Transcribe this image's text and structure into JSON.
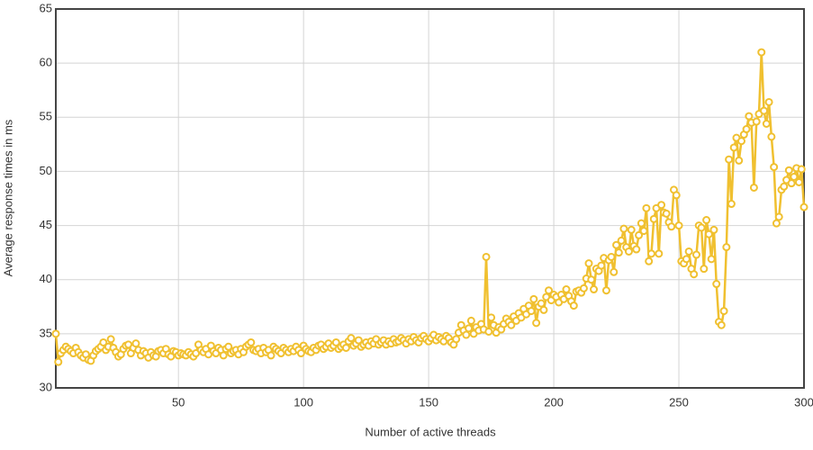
{
  "chart_data": {
    "type": "line",
    "x_label": "Number of active threads",
    "y_label": "Average response times in ms",
    "xlim": [
      1,
      300
    ],
    "xticks": [
      50,
      100,
      150,
      200,
      250,
      300
    ],
    "ylim": [
      30,
      65
    ],
    "yticks": [
      30,
      35,
      40,
      45,
      50,
      55,
      60,
      65
    ],
    "grid": true,
    "x": [
      1,
      2,
      3,
      4,
      5,
      6,
      7,
      8,
      9,
      10,
      11,
      12,
      13,
      14,
      15,
      16,
      17,
      18,
      19,
      20,
      21,
      22,
      23,
      24,
      25,
      26,
      27,
      28,
      29,
      30,
      31,
      32,
      33,
      34,
      35,
      36,
      37,
      38,
      39,
      40,
      41,
      42,
      43,
      44,
      45,
      46,
      47,
      48,
      49,
      50,
      51,
      52,
      53,
      54,
      55,
      56,
      57,
      58,
      59,
      60,
      61,
      62,
      63,
      64,
      65,
      66,
      67,
      68,
      69,
      70,
      71,
      72,
      73,
      74,
      75,
      76,
      77,
      78,
      79,
      80,
      81,
      82,
      83,
      84,
      85,
      86,
      87,
      88,
      89,
      90,
      91,
      92,
      93,
      94,
      95,
      96,
      97,
      98,
      99,
      100,
      101,
      102,
      103,
      104,
      105,
      106,
      107,
      108,
      109,
      110,
      111,
      112,
      113,
      114,
      115,
      116,
      117,
      118,
      119,
      120,
      121,
      122,
      123,
      124,
      125,
      126,
      127,
      128,
      129,
      130,
      131,
      132,
      133,
      134,
      135,
      136,
      137,
      138,
      139,
      140,
      141,
      142,
      143,
      144,
      145,
      146,
      147,
      148,
      149,
      150,
      151,
      152,
      153,
      154,
      155,
      156,
      157,
      158,
      159,
      160,
      161,
      162,
      163,
      164,
      165,
      166,
      167,
      168,
      169,
      170,
      171,
      172,
      173,
      174,
      175,
      176,
      177,
      178,
      179,
      180,
      181,
      182,
      183,
      184,
      185,
      186,
      187,
      188,
      189,
      190,
      191,
      192,
      193,
      194,
      195,
      196,
      197,
      198,
      199,
      200,
      201,
      202,
      203,
      204,
      205,
      206,
      207,
      208,
      209,
      210,
      211,
      212,
      213,
      214,
      215,
      216,
      217,
      218,
      219,
      220,
      221,
      222,
      223,
      224,
      225,
      226,
      227,
      228,
      229,
      230,
      231,
      232,
      233,
      234,
      235,
      236,
      237,
      238,
      239,
      240,
      241,
      242,
      243,
      244,
      245,
      246,
      247,
      248,
      249,
      250,
      251,
      252,
      253,
      254,
      255,
      256,
      257,
      258,
      259,
      260,
      261,
      262,
      263,
      264,
      265,
      266,
      267,
      268,
      269,
      270,
      271,
      272,
      273,
      274,
      275,
      276,
      277,
      278,
      279,
      280,
      281,
      282,
      283,
      284,
      285,
      286,
      287,
      288,
      289,
      290,
      291,
      292,
      293,
      294,
      295,
      296,
      297,
      298,
      299,
      300
    ],
    "series": [
      {
        "color": "#f0c030",
        "values": [
          35.0,
          32.4,
          33.2,
          33.5,
          33.8,
          33.6,
          33.4,
          33.2,
          33.7,
          33.3,
          33.0,
          32.8,
          33.1,
          32.6,
          32.5,
          33.0,
          33.4,
          33.6,
          33.8,
          34.2,
          33.5,
          33.8,
          34.5,
          33.7,
          33.3,
          32.9,
          33.1,
          33.6,
          33.9,
          34.0,
          33.2,
          33.7,
          34.1,
          33.5,
          33.0,
          33.4,
          33.2,
          32.8,
          33.3,
          33.0,
          32.9,
          33.4,
          33.5,
          33.2,
          33.6,
          33.1,
          32.9,
          33.4,
          33.3,
          33.0,
          33.2,
          33.1,
          33.0,
          33.3,
          33.1,
          32.9,
          33.2,
          34.0,
          33.5,
          33.3,
          33.6,
          33.1,
          33.9,
          33.4,
          33.2,
          33.7,
          33.5,
          33.0,
          33.6,
          33.8,
          33.2,
          33.4,
          33.5,
          33.1,
          33.6,
          33.3,
          33.8,
          34.0,
          34.2,
          33.5,
          33.4,
          33.6,
          33.2,
          33.7,
          33.3,
          33.5,
          33.0,
          33.8,
          33.6,
          33.4,
          33.2,
          33.7,
          33.5,
          33.3,
          33.6,
          33.4,
          33.8,
          33.5,
          33.2,
          33.9,
          33.6,
          33.4,
          33.3,
          33.7,
          33.5,
          33.9,
          34.0,
          33.6,
          33.8,
          34.1,
          33.7,
          33.9,
          34.2,
          33.6,
          33.8,
          34.0,
          33.7,
          34.3,
          34.6,
          33.9,
          34.1,
          34.4,
          33.8,
          34.0,
          34.2,
          33.9,
          34.3,
          34.1,
          34.5,
          34.0,
          34.2,
          34.4,
          34.0,
          34.3,
          34.1,
          34.5,
          34.2,
          34.3,
          34.6,
          34.4,
          34.1,
          34.5,
          34.3,
          34.7,
          34.4,
          34.2,
          34.6,
          34.8,
          34.5,
          34.3,
          34.6,
          34.9,
          34.4,
          34.7,
          34.5,
          34.3,
          34.8,
          34.6,
          34.2,
          34.0,
          34.5,
          35.1,
          35.8,
          35.3,
          34.9,
          35.5,
          36.2,
          35.0,
          35.6,
          35.3,
          35.9,
          35.4,
          42.1,
          35.2,
          36.5,
          35.8,
          35.1,
          35.6,
          35.4,
          35.9,
          36.4,
          36.1,
          35.8,
          36.6,
          36.2,
          36.9,
          36.5,
          37.3,
          36.8,
          37.6,
          37.1,
          38.2,
          36.0,
          37.5,
          37.8,
          37.2,
          38.4,
          39.0,
          38.1,
          38.6,
          38.4,
          37.9,
          38.6,
          38.2,
          39.1,
          38.5,
          38.0,
          37.6,
          38.9,
          39.0,
          38.8,
          39.2,
          40.1,
          41.5,
          40.0,
          39.1,
          41.0,
          40.8,
          41.3,
          42.0,
          39.0,
          41.8,
          42.1,
          40.7,
          43.2,
          42.5,
          43.6,
          44.7,
          43.0,
          42.6,
          44.6,
          43.1,
          42.8,
          44.1,
          45.2,
          44.5,
          46.6,
          41.7,
          42.4,
          45.6,
          46.6,
          42.4,
          46.9,
          46.2,
          46.1,
          45.3,
          44.9,
          48.3,
          47.8,
          45.0,
          41.7,
          41.5,
          41.9,
          42.6,
          41.0,
          40.5,
          42.3,
          45.0,
          44.8,
          41.0,
          45.5,
          44.2,
          41.9,
          44.6,
          39.6,
          36.1,
          35.8,
          37.1,
          43.0,
          51.1,
          47.0,
          52.2,
          53.1,
          51.0,
          52.8,
          53.4,
          53.9,
          55.1,
          54.5,
          48.5,
          54.6,
          55.3,
          61.0,
          55.6,
          54.4,
          56.4,
          53.2,
          50.4,
          45.2,
          45.8,
          48.3,
          48.6,
          49.2,
          50.1,
          48.9,
          49.5,
          50.3,
          49.0,
          50.2,
          46.7
        ]
      }
    ]
  }
}
